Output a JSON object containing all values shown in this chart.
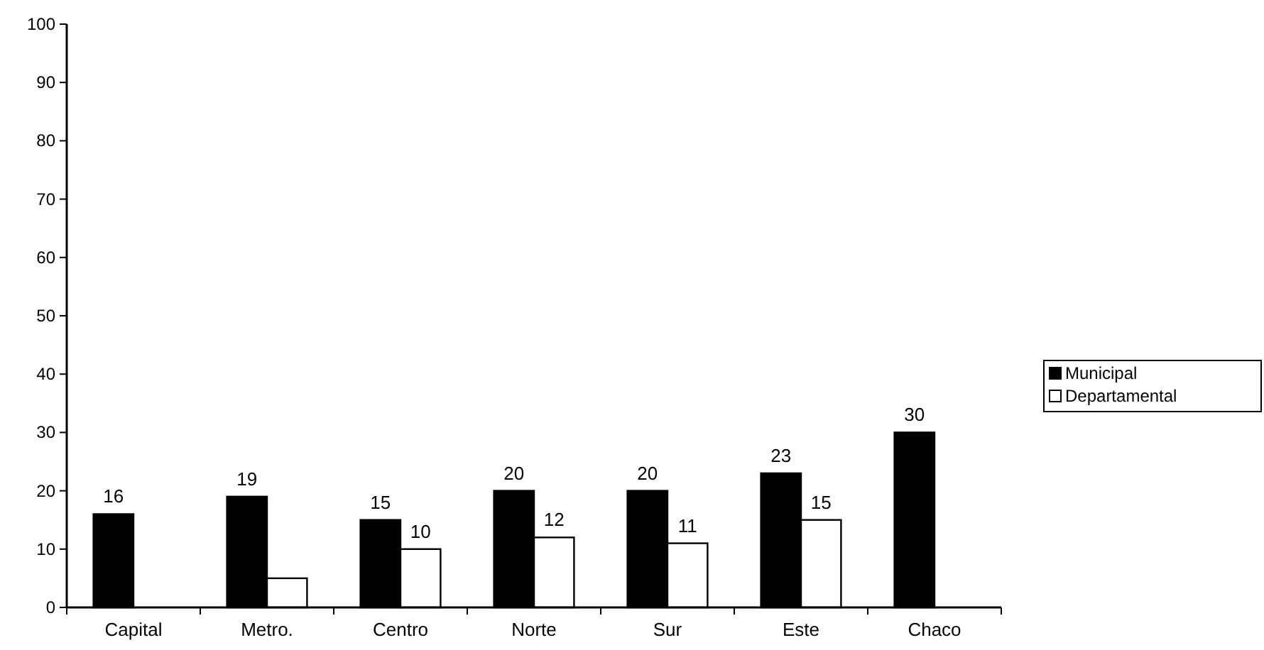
{
  "chart_data": {
    "type": "bar",
    "categories": [
      "Capital",
      "Metro.",
      "Centro",
      "Norte",
      "Sur",
      "Este",
      "Chaco"
    ],
    "series": [
      {
        "name": "Municipal",
        "color": "#000000",
        "values": [
          16,
          19,
          15,
          20,
          20,
          23,
          30
        ],
        "value_labels": [
          "16",
          "19",
          "15",
          "20",
          "20",
          "23",
          "30"
        ]
      },
      {
        "name": "Departamental",
        "color": "#ffffff",
        "values": [
          null,
          5,
          10,
          12,
          11,
          15,
          null
        ],
        "value_labels": [
          null,
          null,
          "10",
          "12",
          "11",
          "15",
          null
        ]
      }
    ],
    "ylim": [
      0,
      100
    ],
    "yticks": [
      0,
      10,
      20,
      30,
      40,
      50,
      60,
      70,
      80,
      90,
      100
    ],
    "legend": "right",
    "grid": false
  }
}
